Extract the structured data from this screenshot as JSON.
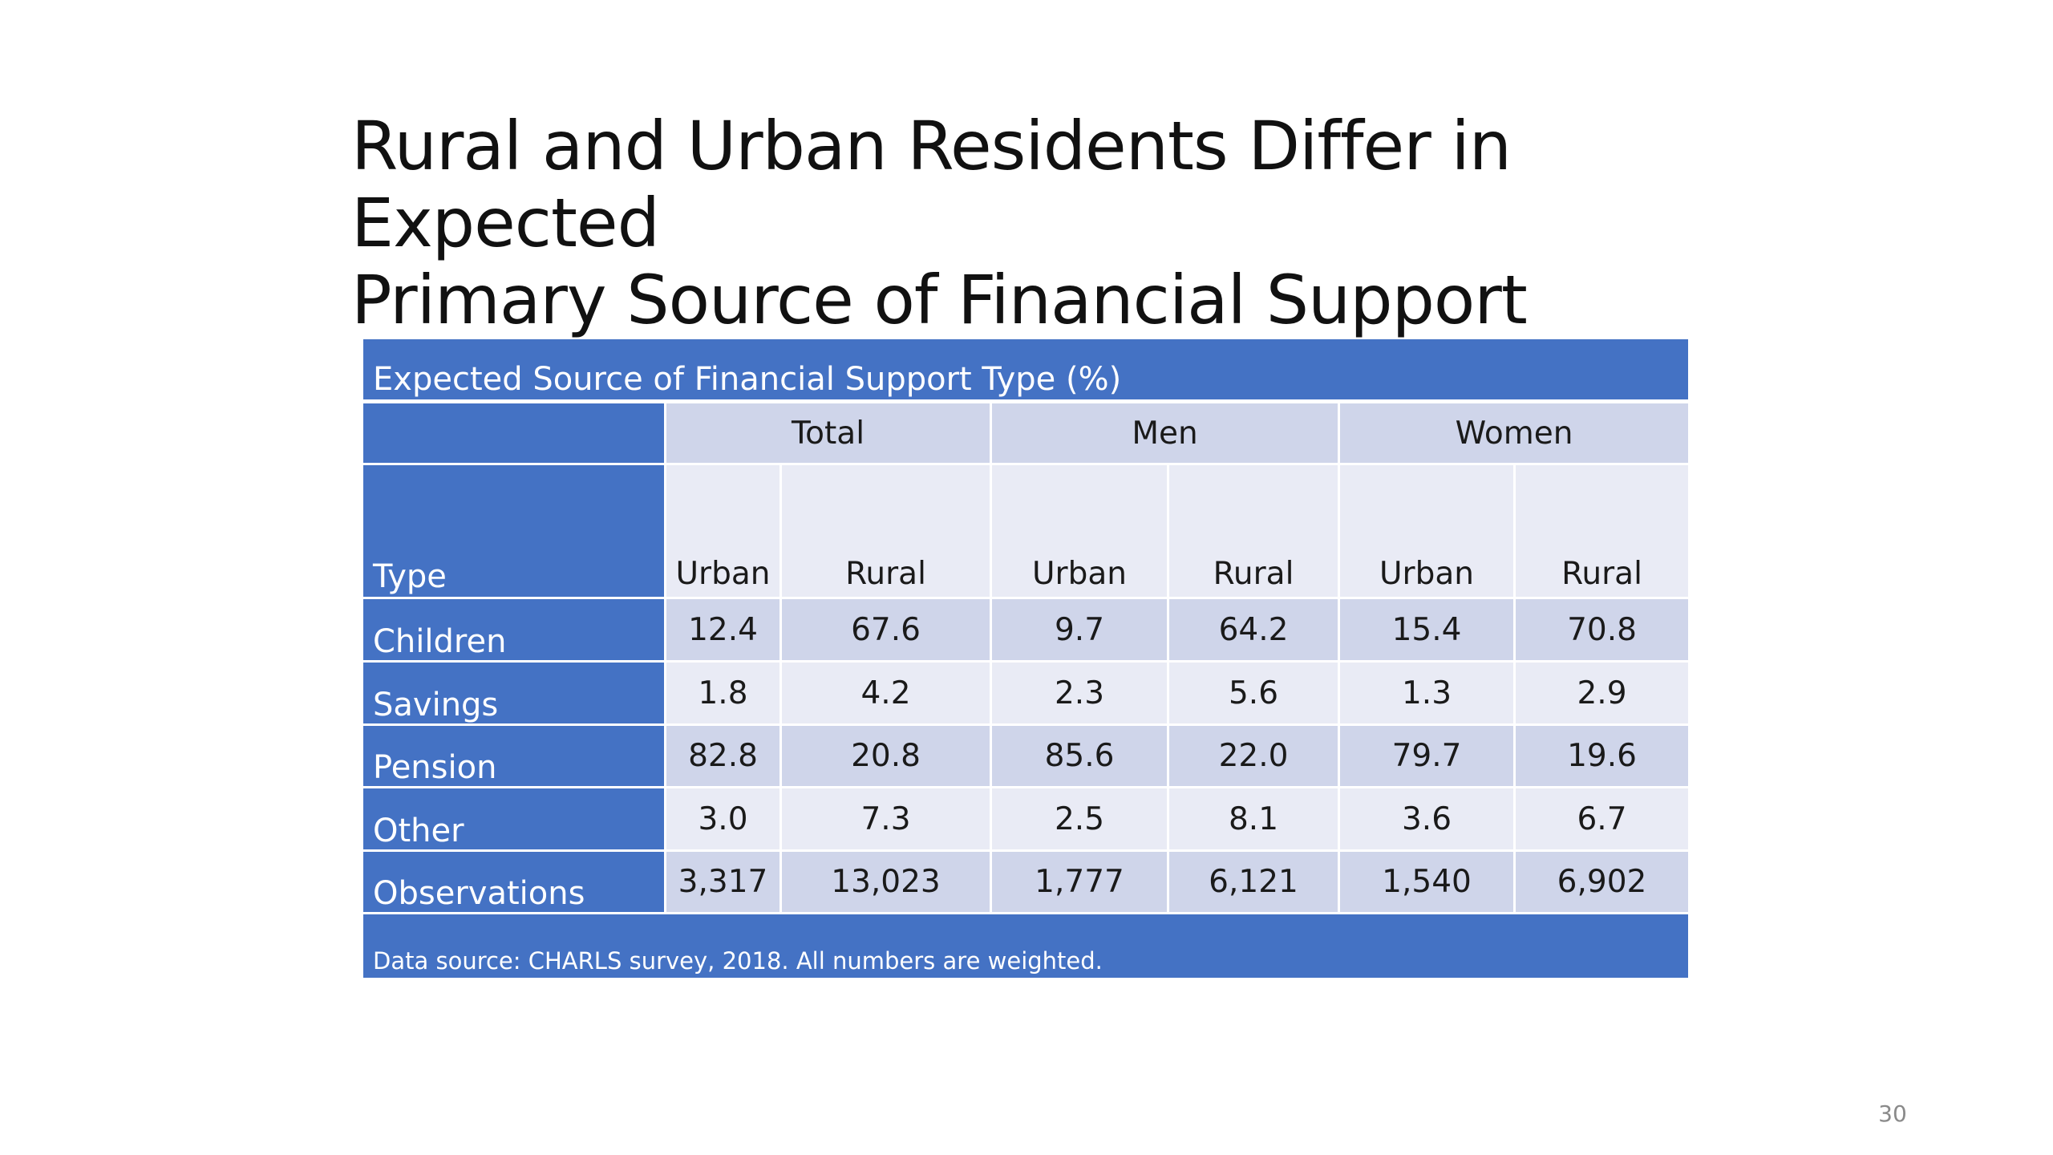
{
  "slide": {
    "title_line1": "Rural and Urban Residents Differ in Expected",
    "title_line2": "Primary Source of Financial Support",
    "page_number": "30"
  },
  "table": {
    "caption": "Expected Source of Financial Support Type (%)",
    "groups": [
      "Total",
      "Men",
      "Women"
    ],
    "type_header": "Type",
    "subheaders": [
      "Urban",
      "Rural",
      "Urban",
      "Rural",
      "Urban",
      "Rural"
    ],
    "rows": [
      {
        "label": "Children",
        "values": [
          "12.4",
          "67.6",
          "9.7",
          "64.2",
          "15.4",
          "70.8"
        ]
      },
      {
        "label": "Savings",
        "values": [
          "1.8",
          "4.2",
          "2.3",
          "5.6",
          "1.3",
          "2.9"
        ]
      },
      {
        "label": "Pension",
        "values": [
          "82.8",
          "20.8",
          "85.6",
          "22.0",
          "79.7",
          "19.6"
        ]
      },
      {
        "label": "Other",
        "values": [
          "3.0",
          "7.3",
          "2.5",
          "8.1",
          "3.6",
          "6.7"
        ]
      },
      {
        "label": "Observations",
        "values": [
          "3,317",
          "13,023",
          "1,777",
          "6,121",
          "1,540",
          "6,902"
        ]
      }
    ],
    "footnote": "Data source: CHARLS survey, 2018. All numbers are weighted."
  },
  "colors": {
    "header_blue": "#4472c4",
    "band_dark": "#cfd5ea",
    "band_light": "#e9ebf5"
  }
}
